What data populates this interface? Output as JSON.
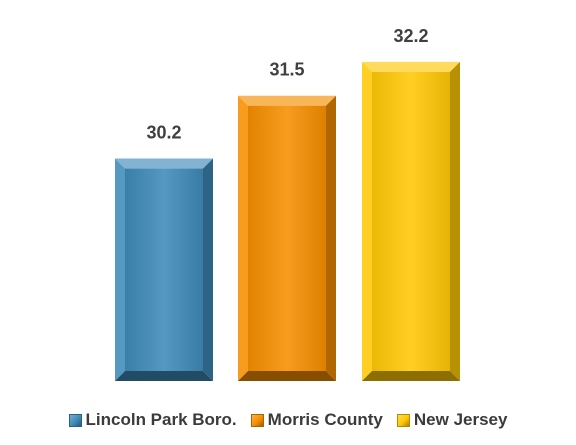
{
  "chart_data": {
    "type": "bar",
    "categories": [
      "Lincoln Park Boro.",
      "Morris County",
      "New Jersey"
    ],
    "values": [
      30.2,
      31.5,
      32.2
    ],
    "series_colors": [
      "#3E8AB8",
      "#F68E00",
      "#FFC805"
    ],
    "data_labels": [
      "30.2",
      "31.5",
      "32.2"
    ],
    "title": "",
    "xlabel": "",
    "ylabel": "",
    "ylim": [
      25.6,
      32.9
    ],
    "legend_position": "bottom",
    "grid": false
  }
}
